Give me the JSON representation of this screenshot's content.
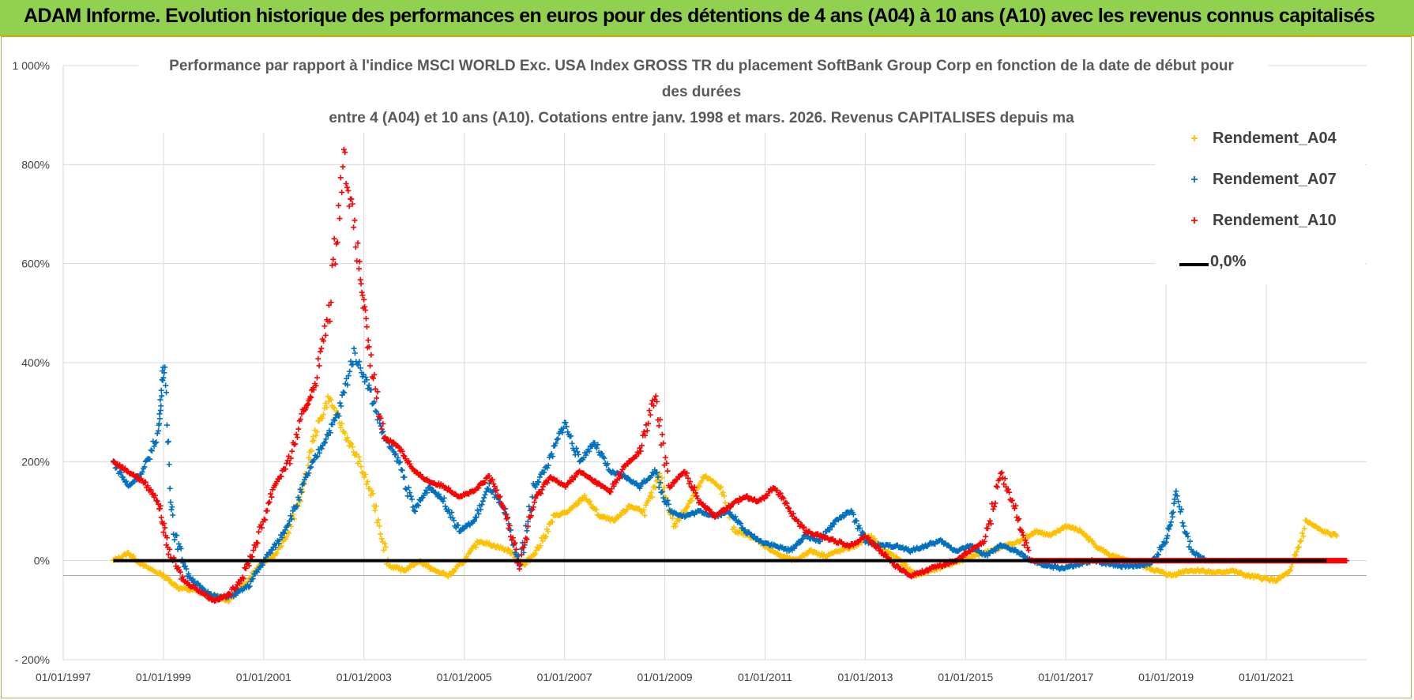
{
  "header": {
    "banner_text": "ADAM Informe. Evolution historique des performances en euros pour des détentions de 4 ans (A04) à 10 ans (A10) avec les revenus connus capitalisés",
    "banner_color": "#92d050"
  },
  "chart_data": {
    "type": "scatter",
    "title_lines": [
      "Performance par rapport à l'indice MSCI WORLD Exc. USA Index GROSS TR  du placement SoftBank Group Corp en fonction de la date de début pour",
      "des durées",
      "entre 4 (A04) et 10 ans (A10). Cotations entre janv. 1998 et mars. 2026. Revenus CAPITALISES depuis ma"
    ],
    "xlabel": "",
    "ylabel": "",
    "xlim": [
      "01/01/1997",
      "01/01/2023"
    ],
    "ylim": [
      -200,
      1000
    ],
    "y_ticks": [
      -200,
      0,
      200,
      400,
      600,
      800,
      1000
    ],
    "y_tick_labels": [
      "- 200%",
      "0%",
      "200%",
      "400%",
      "600%",
      "800%",
      "1 000%"
    ],
    "x_ticks": [
      1997,
      1999,
      2001,
      2003,
      2005,
      2007,
      2009,
      2011,
      2013,
      2015,
      2017,
      2019,
      2021
    ],
    "x_tick_labels": [
      "01/01/1997",
      "01/01/1999",
      "01/01/2001",
      "01/01/2003",
      "01/01/2005",
      "01/01/2007",
      "01/01/2009",
      "01/01/2011",
      "01/01/2013",
      "01/01/2015",
      "01/01/2017",
      "01/01/2019",
      "01/01/2021"
    ],
    "grid": true,
    "legend_position": "top-right",
    "series": [
      {
        "name": "Rendement_A04",
        "color": "#ffc000",
        "marker": "+",
        "x": [
          1998.0,
          1998.3,
          1998.6,
          1999.0,
          1999.3,
          1999.6,
          2000.0,
          2000.3,
          2000.6,
          2000.9,
          2001.2,
          2001.5,
          2001.8,
          2002.0,
          2002.3,
          2002.6,
          2002.9,
          2003.2,
          2003.5,
          2003.8,
          2004.1,
          2004.4,
          2004.7,
          2005.0,
          2005.3,
          2005.6,
          2005.9,
          2006.2,
          2006.5,
          2006.8,
          2007.1,
          2007.4,
          2007.7,
          2008.0,
          2008.3,
          2008.6,
          2008.9,
          2009.2,
          2009.5,
          2009.8,
          2010.1,
          2010.4,
          2010.7,
          2011.0,
          2011.3,
          2011.6,
          2011.9,
          2012.2,
          2012.5,
          2012.8,
          2013.1,
          2013.4,
          2013.7,
          2014.0,
          2014.3,
          2014.6,
          2014.9,
          2015.2,
          2015.5,
          2015.8,
          2016.1,
          2016.4,
          2016.7,
          2017.0,
          2017.3,
          2017.6,
          2017.9,
          2018.2,
          2018.5,
          2018.8,
          2019.1,
          2019.4,
          2019.7,
          2020.0,
          2020.3,
          2020.6,
          2020.9,
          2021.2,
          2021.5,
          2021.8,
          2022.1,
          2022.4
        ],
        "y": [
          0,
          15,
          -10,
          -30,
          -55,
          -60,
          -70,
          -80,
          -50,
          -10,
          10,
          60,
          150,
          250,
          330,
          260,
          200,
          120,
          -10,
          -20,
          0,
          -20,
          -30,
          0,
          40,
          30,
          20,
          -10,
          30,
          90,
          100,
          130,
          90,
          80,
          110,
          100,
          170,
          70,
          120,
          170,
          150,
          60,
          50,
          30,
          10,
          0,
          20,
          10,
          20,
          30,
          50,
          20,
          0,
          -30,
          -20,
          -10,
          0,
          10,
          20,
          30,
          40,
          60,
          50,
          70,
          60,
          30,
          10,
          0,
          -10,
          -20,
          -30,
          -20,
          -20,
          -25,
          -20,
          -30,
          -35,
          -40,
          -20,
          80,
          60,
          50
        ]
      },
      {
        "name": "Rendement_A07",
        "color": "#0070c0",
        "marker": "+",
        "x": [
          1998.0,
          1998.3,
          1998.6,
          1998.9,
          1999.0,
          1999.2,
          1999.5,
          1999.8,
          2000.1,
          2000.4,
          2000.7,
          2001.0,
          2001.3,
          2001.6,
          2001.9,
          2002.2,
          2002.5,
          2002.8,
          2003.1,
          2003.4,
          2003.7,
          2004.0,
          2004.3,
          2004.6,
          2004.9,
          2005.2,
          2005.5,
          2005.8,
          2006.1,
          2006.4,
          2006.7,
          2007.0,
          2007.3,
          2007.6,
          2007.9,
          2008.2,
          2008.5,
          2008.8,
          2009.1,
          2009.4,
          2009.7,
          2010.0,
          2010.3,
          2010.6,
          2010.9,
          2011.2,
          2011.5,
          2011.8,
          2012.1,
          2012.4,
          2012.7,
          2013.0,
          2013.3,
          2013.6,
          2013.9,
          2014.2,
          2014.5,
          2014.8,
          2015.1,
          2015.4,
          2015.7,
          2016.0,
          2016.3,
          2016.6,
          2016.9,
          2017.2,
          2017.5,
          2017.8,
          2018.1,
          2018.4,
          2018.7,
          2019.0,
          2019.2,
          2019.5,
          2019.8,
          2020.1,
          2020.4,
          2020.7,
          2021.0,
          2021.3,
          2021.6,
          2021.9,
          2022.2
        ],
        "y": [
          200,
          150,
          180,
          260,
          400,
          60,
          -30,
          -60,
          -75,
          -70,
          -50,
          0,
          40,
          100,
          180,
          240,
          300,
          420,
          350,
          250,
          200,
          100,
          150,
          120,
          60,
          80,
          150,
          100,
          -10,
          150,
          200,
          280,
          200,
          240,
          180,
          170,
          150,
          180,
          100,
          90,
          100,
          90,
          100,
          60,
          40,
          30,
          20,
          50,
          40,
          80,
          100,
          40,
          30,
          30,
          20,
          30,
          40,
          20,
          30,
          10,
          30,
          20,
          0,
          -10,
          -15,
          -10,
          0,
          -5,
          -10,
          -10,
          -5,
          40,
          130,
          20,
          0,
          0,
          0,
          0,
          0,
          0,
          0,
          0,
          0
        ]
      },
      {
        "name": "Rendement_A10",
        "color": "#ff0000",
        "marker": "+",
        "x": [
          1998.0,
          1998.3,
          1998.6,
          1998.9,
          1999.1,
          1999.4,
          1999.7,
          2000.0,
          2000.3,
          2000.6,
          2000.9,
          2001.2,
          2001.5,
          2001.8,
          2002.0,
          2002.3,
          2002.6,
          2002.9,
          2003.1,
          2003.4,
          2003.7,
          2004.0,
          2004.3,
          2004.6,
          2004.9,
          2005.2,
          2005.5,
          2005.8,
          2006.1,
          2006.4,
          2006.7,
          2007.0,
          2007.3,
          2007.6,
          2007.9,
          2008.2,
          2008.5,
          2008.8,
          2009.1,
          2009.4,
          2009.7,
          2010.0,
          2010.3,
          2010.6,
          2010.9,
          2011.2,
          2011.5,
          2011.8,
          2012.1,
          2012.4,
          2012.7,
          2013.0,
          2013.3,
          2013.6,
          2013.9,
          2014.2,
          2014.5,
          2014.8,
          2015.1,
          2015.4,
          2015.7,
          2016.0,
          2016.3,
          2016.6,
          2016.9,
          2017.2,
          2017.5,
          2017.8,
          2018.1,
          2018.4,
          2018.7,
          2019.0,
          2019.3,
          2019.6,
          2019.9,
          2020.2,
          2020.5,
          2020.8,
          2021.1,
          2021.4,
          2021.7,
          2022.0,
          2022.3,
          2022.6
        ],
        "y": [
          200,
          180,
          160,
          120,
          20,
          -40,
          -60,
          -80,
          -70,
          -30,
          50,
          150,
          200,
          300,
          350,
          500,
          820,
          600,
          420,
          250,
          230,
          180,
          160,
          150,
          130,
          140,
          170,
          110,
          -10,
          120,
          170,
          150,
          180,
          160,
          140,
          190,
          220,
          330,
          150,
          180,
          120,
          90,
          110,
          130,
          120,
          150,
          100,
          60,
          50,
          40,
          30,
          50,
          20,
          -10,
          -30,
          -20,
          -10,
          0,
          20,
          40,
          180,
          100,
          0,
          0,
          0,
          0,
          0,
          0,
          0,
          0,
          0,
          0,
          0,
          0,
          0,
          0,
          0,
          0,
          0,
          0,
          0,
          0,
          0,
          0
        ]
      },
      {
        "name": "0,0%",
        "color": "#000000",
        "marker": "line",
        "x": [
          1998.0,
          2022.2
        ],
        "y": [
          0,
          0
        ]
      }
    ]
  }
}
